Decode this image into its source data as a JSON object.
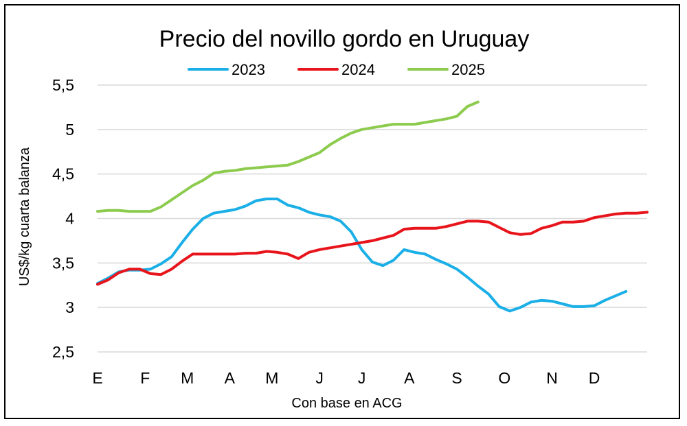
{
  "chart_data": {
    "type": "line",
    "title": "Precio del novillo gordo en Uruguay",
    "xlabel": "Con base en ACG",
    "ylabel": "US$/kg cuarta balanza",
    "ylim": [
      2.5,
      5.5
    ],
    "y_ticks": [
      "2,5",
      "3",
      "3,5",
      "4",
      "4,5",
      "5",
      "5,5"
    ],
    "y_tick_values": [
      2.5,
      3,
      3.5,
      4,
      4.5,
      5,
      5.5
    ],
    "x_ticks": [
      "E",
      "F",
      "M",
      "A",
      "M",
      "J",
      "J",
      "A",
      "S",
      "O",
      "N",
      "D"
    ],
    "x_tick_weeks": [
      1,
      5.5,
      9.5,
      13.5,
      17.5,
      22,
      26,
      30.5,
      35,
      39.5,
      44,
      48
    ],
    "grid": true,
    "legend": "top",
    "series": [
      {
        "name": "2023",
        "color": "#1AAFE6",
        "x": [
          1,
          2,
          3,
          4,
          5,
          6,
          7,
          8,
          9,
          10,
          11,
          12,
          13,
          14,
          15,
          16,
          17,
          18,
          19,
          20,
          21,
          22,
          23,
          24,
          25,
          26,
          27,
          28,
          29,
          30,
          31,
          32,
          33,
          34,
          35,
          36,
          37,
          38,
          39,
          40,
          41,
          42,
          43,
          44,
          45,
          46,
          47,
          48,
          49,
          50,
          51
        ],
        "values": [
          3.27,
          3.33,
          3.4,
          3.42,
          3.42,
          3.43,
          3.49,
          3.57,
          3.73,
          3.88,
          4.0,
          4.06,
          4.08,
          4.1,
          4.14,
          4.2,
          4.22,
          4.22,
          4.15,
          4.12,
          4.07,
          4.04,
          4.02,
          3.97,
          3.85,
          3.65,
          3.51,
          3.47,
          3.53,
          3.65,
          3.62,
          3.6,
          3.54,
          3.49,
          3.43,
          3.34,
          3.24,
          3.15,
          3.01,
          2.96,
          3.0,
          3.06,
          3.08,
          3.07,
          3.04,
          3.01,
          3.01,
          3.02,
          3.08,
          3.13,
          3.18
        ]
      },
      {
        "name": "2024",
        "color": "#E8141B",
        "x": [
          1,
          2,
          3,
          4,
          5,
          6,
          7,
          8,
          9,
          10,
          11,
          12,
          13,
          14,
          15,
          16,
          17,
          18,
          19,
          20,
          21,
          22,
          23,
          24,
          25,
          26,
          27,
          28,
          29,
          30,
          31,
          32,
          33,
          34,
          35,
          36,
          37,
          38,
          39,
          40,
          41,
          42,
          43,
          44,
          45,
          46,
          47,
          48,
          49,
          50,
          51,
          52,
          53
        ],
        "values": [
          3.26,
          3.31,
          3.39,
          3.43,
          3.43,
          3.38,
          3.37,
          3.43,
          3.52,
          3.6,
          3.6,
          3.6,
          3.6,
          3.6,
          3.61,
          3.61,
          3.63,
          3.62,
          3.6,
          3.55,
          3.62,
          3.65,
          3.67,
          3.69,
          3.71,
          3.73,
          3.75,
          3.78,
          3.81,
          3.88,
          3.89,
          3.89,
          3.89,
          3.91,
          3.94,
          3.97,
          3.97,
          3.96,
          3.9,
          3.84,
          3.82,
          3.83,
          3.89,
          3.92,
          3.96,
          3.96,
          3.97,
          4.01,
          4.03,
          4.05,
          4.06,
          4.06,
          4.07
        ]
      },
      {
        "name": "2025",
        "color": "#8DCB4E",
        "x": [
          1,
          2,
          3,
          4,
          5,
          6,
          7,
          8,
          9,
          10,
          11,
          12,
          13,
          14,
          15,
          16,
          17,
          18,
          19,
          20,
          21,
          22,
          23,
          24,
          25,
          26,
          27,
          28,
          29,
          30,
          31,
          32,
          33,
          34,
          35,
          36,
          37
        ],
        "values": [
          4.08,
          4.09,
          4.09,
          4.08,
          4.08,
          4.08,
          4.13,
          4.21,
          4.29,
          4.37,
          4.43,
          4.51,
          4.53,
          4.54,
          4.56,
          4.57,
          4.58,
          4.59,
          4.6,
          4.64,
          4.69,
          4.74,
          4.83,
          4.9,
          4.96,
          5.0,
          5.02,
          5.04,
          5.06,
          5.06,
          5.06,
          5.08,
          5.1,
          5.12,
          5.15,
          5.26,
          5.31
        ]
      }
    ]
  }
}
